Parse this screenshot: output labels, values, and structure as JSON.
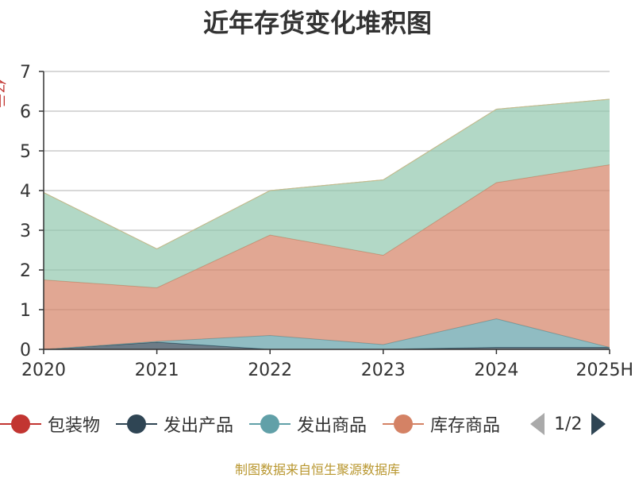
{
  "chart_data": {
    "type": "area",
    "title": "近年存货变化堆积图",
    "ylabel": "亿元",
    "x": [
      "2020",
      "2021",
      "2022",
      "2023",
      "2024",
      "2025H"
    ],
    "ylim": [
      0,
      7
    ],
    "yticks": [
      "0",
      "1",
      "2",
      "3",
      "4",
      "5",
      "6",
      "7"
    ],
    "stacked": true,
    "grid": true,
    "legend_position": "bottom",
    "series": [
      {
        "name": "包装物",
        "color": "#c23531",
        "values": [
          0.0,
          0.0,
          0.0,
          0.0,
          0.0,
          0.0
        ]
      },
      {
        "name": "发出产品",
        "color": "#2f4554",
        "values": [
          0.0,
          0.18,
          0.0,
          0.0,
          0.05,
          0.05
        ]
      },
      {
        "name": "发出商品",
        "color": "#61a0a8",
        "values": [
          0.0,
          0.02,
          0.35,
          0.12,
          0.72,
          0.0
        ]
      },
      {
        "name": "库存商品",
        "color": "#d48265",
        "values": [
          1.75,
          1.35,
          2.53,
          2.25,
          3.43,
          4.6
        ]
      },
      {
        "name": "",
        "color": "#91c7ae",
        "values": [
          2.2,
          0.98,
          1.12,
          1.9,
          1.85,
          1.65
        ]
      }
    ]
  },
  "legend": {
    "items": [
      {
        "label": "包装物",
        "color": "#c23531"
      },
      {
        "label": "发出产品",
        "color": "#2f4554"
      },
      {
        "label": "发出商品",
        "color": "#61a0a8"
      },
      {
        "label": "库存商品",
        "color": "#d48265"
      }
    ],
    "page": "1/2"
  },
  "footer": "制图数据来自恒生聚源数据库"
}
